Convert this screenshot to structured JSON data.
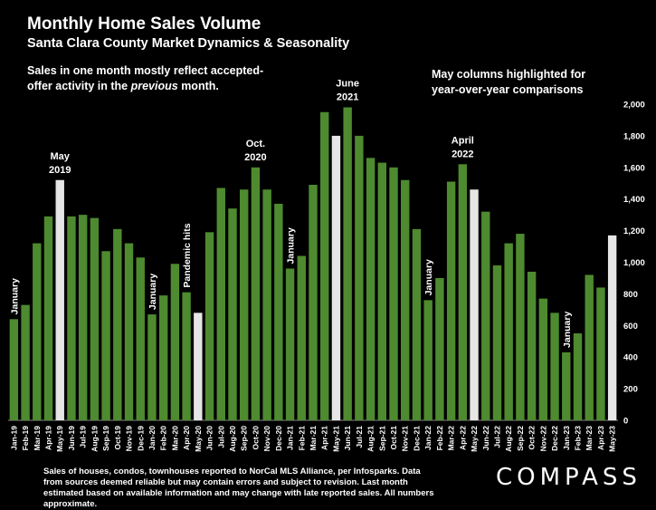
{
  "title": "Monthly Home Sales Volume",
  "subtitle": "Santa Clara County Market Dynamics & Seasonality",
  "note_left_before": "Sales in one month mostly reflect accepted-offer activity in the ",
  "note_left_italic": "previous",
  "note_left_after": " month.",
  "note_right": "May columns highlighted for year-over-year comparisons",
  "footnote": "Sales of houses, condos, townhouses reported to NorCal MLS Alliance, per Infosparks. Data from sources deemed reliable but may contain errors and subject to revision. Last month estimated based on available information and may change with late reported sales. All numbers approximate.",
  "logo": "COMPASS",
  "colors": {
    "background": "#000000",
    "bar": "#4e8a2f",
    "highlight": "#e6e6e6",
    "text": "#ffffff",
    "grid": "#444444"
  },
  "chart_data": {
    "type": "bar",
    "title": "Monthly Home Sales Volume",
    "xlabel": "",
    "ylabel": "",
    "ylim": [
      0,
      2000
    ],
    "yticks": [
      0,
      200,
      400,
      600,
      800,
      1000,
      1200,
      1400,
      1600,
      1800,
      2000
    ],
    "ytick_labels": [
      "0",
      "200",
      "400",
      "600",
      "800",
      "1,000",
      "1,200",
      "1,400",
      "1,600",
      "1,800",
      "2,000"
    ],
    "grid": false,
    "legend": "none",
    "categories": [
      "Jan-19",
      "Feb-19",
      "Mar-19",
      "Apr-19",
      "May-19",
      "Jun-19",
      "Jul-19",
      "Aug-19",
      "Sep-19",
      "Oct-19",
      "Nov-19",
      "Dec-19",
      "Jan-20",
      "Feb-20",
      "Mar-20",
      "Apr-20",
      "May-20",
      "Jun-20",
      "Jul-20",
      "Aug-20",
      "Sep-20",
      "Oct-20",
      "Nov-20",
      "Dec-20",
      "Jan-21",
      "Feb-21",
      "Mar-21",
      "Apr-21",
      "May-21",
      "Jun-21",
      "Jul-21",
      "Aug-21",
      "Sep-21",
      "Oct-21",
      "Nov-21",
      "Dec-21",
      "Jan-22",
      "Feb-22",
      "Mar-22",
      "Apr-22",
      "May-22",
      "Jun-22",
      "Jul-22",
      "Aug-22",
      "Sep-22",
      "Oct-22",
      "Nov-22",
      "Dec-22",
      "Jan-23",
      "Feb-23",
      "Mar-23",
      "Apr-23",
      "May-23"
    ],
    "values": [
      640,
      730,
      1120,
      1290,
      1520,
      1290,
      1300,
      1280,
      1070,
      1210,
      1120,
      1030,
      670,
      790,
      990,
      810,
      680,
      1190,
      1470,
      1340,
      1460,
      1600,
      1460,
      1370,
      960,
      1040,
      1490,
      1950,
      1800,
      1980,
      1800,
      1660,
      1630,
      1600,
      1520,
      1210,
      760,
      900,
      1510,
      1620,
      1460,
      1320,
      980,
      1120,
      1180,
      940,
      770,
      680,
      430,
      550,
      920,
      840,
      1170
    ],
    "highlighted": [
      "May-19",
      "May-20",
      "May-21",
      "May-22",
      "May-23"
    ],
    "annotations": [
      {
        "category": "Jan-19",
        "text": "January",
        "orientation": "vertical"
      },
      {
        "category": "May-19",
        "text": "May\n2019",
        "orientation": "horizontal"
      },
      {
        "category": "Jan-20",
        "text": "January",
        "orientation": "vertical"
      },
      {
        "category": "Apr-20",
        "text": "Pandemic hits",
        "orientation": "vertical"
      },
      {
        "category": "Oct-20",
        "text": "Oct.\n2020",
        "orientation": "horizontal"
      },
      {
        "category": "Jan-21",
        "text": "January",
        "orientation": "vertical"
      },
      {
        "category": "Jun-21",
        "text": "June\n2021",
        "orientation": "horizontal"
      },
      {
        "category": "Jan-22",
        "text": "January",
        "orientation": "vertical"
      },
      {
        "category": "Apr-22",
        "text": "April\n2022",
        "orientation": "horizontal"
      },
      {
        "category": "Jan-23",
        "text": "January",
        "orientation": "vertical"
      }
    ]
  }
}
